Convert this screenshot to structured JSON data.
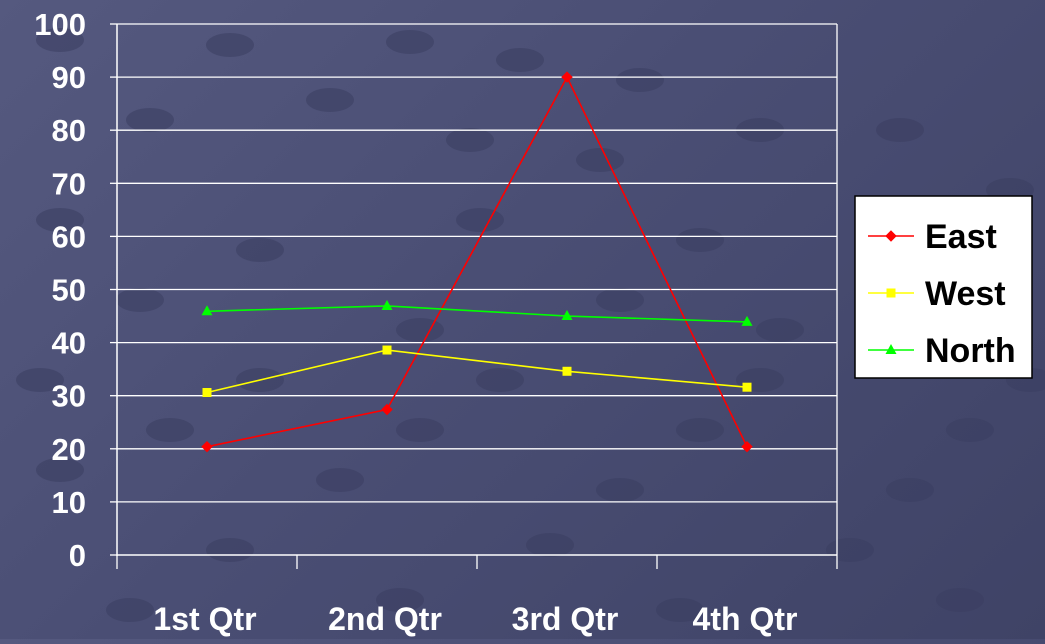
{
  "chart_data": {
    "type": "line",
    "categories": [
      "1st Qtr",
      "2nd Qtr",
      "3rd Qtr",
      "4th Qtr"
    ],
    "series": [
      {
        "name": "East",
        "values": [
          20.4,
          27.4,
          90,
          20.4
        ],
        "color": "#ff0000",
        "marker": "diamond"
      },
      {
        "name": "West",
        "values": [
          30.6,
          38.6,
          34.6,
          31.6
        ],
        "color": "#ffff00",
        "marker": "square"
      },
      {
        "name": "North",
        "values": [
          45.9,
          46.9,
          45,
          43.9
        ],
        "color": "#00ff00",
        "marker": "triangle"
      }
    ],
    "ylim": [
      0,
      100
    ],
    "yticks": [
      "0",
      "10",
      "20",
      "30",
      "40",
      "50",
      "60",
      "70",
      "80",
      "90",
      "100"
    ],
    "grid": true,
    "legend": "right",
    "colors": {
      "axis": "#ffffff",
      "grid": "#ffffff",
      "legend_bg": "#ffffff",
      "legend_border": "#000000",
      "legend_text": "#000000"
    }
  }
}
